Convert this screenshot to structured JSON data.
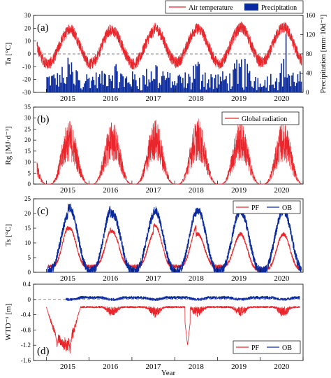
{
  "x_axis_label": "Year",
  "colors": {
    "red": "#e8262c",
    "blue": "#0b2a9e",
    "zero_line": "#555555"
  },
  "chart_data": [
    {
      "type": "line",
      "panel": "(a)",
      "ylabel": "Ta [°C]",
      "ylabel_right": "Precipitation [mm·10d⁻¹]",
      "ylim": [
        -30,
        30
      ],
      "yticks": [
        -30,
        -20,
        -10,
        0,
        10,
        20,
        30
      ],
      "ylim_right": [
        0,
        160
      ],
      "yticks_right": [
        0,
        40,
        80,
        120,
        160
      ],
      "xlim": [
        2014.7,
        2021.0
      ],
      "x_tick_labels": [
        "2015",
        "2016",
        "2017",
        "2018",
        "2019",
        "2020"
      ],
      "legend_position": "top-right",
      "reference_line": 0,
      "series": [
        {
          "name": "Air temperature",
          "type": "line",
          "color": "#e8262c",
          "amplitude": 14,
          "mean": 6,
          "peak_values": [
            20,
            22,
            20,
            22,
            22,
            23
          ],
          "trough_values": [
            -10,
            -10,
            -10,
            -9,
            -10,
            -9
          ]
        },
        {
          "name": "Precipitation",
          "type": "bar",
          "axis": "right",
          "color": "#0b2a9e",
          "interval_days": 10,
          "typical_max": 75,
          "extreme_event": {
            "x": 2020.6,
            "value": 122
          }
        }
      ]
    },
    {
      "type": "line",
      "panel": "(b)",
      "ylabel": "Rg [MJ·d⁻¹]",
      "ylim": [
        0,
        35
      ],
      "yticks": [
        0,
        5,
        10,
        15,
        20,
        25,
        30,
        35
      ],
      "xlim": [
        2014.7,
        2021.0
      ],
      "x_tick_labels": [
        "2015",
        "2016",
        "2017",
        "2018",
        "2019",
        "2020"
      ],
      "legend_position": "top-right",
      "series": [
        {
          "name": "Global radiation",
          "color": "#e8262c",
          "peak_values": [
            30,
            29,
            29,
            30,
            30,
            29
          ],
          "winter_min": 0
        }
      ]
    },
    {
      "type": "line",
      "panel": "(c)",
      "ylabel": "Ts [°C]",
      "ylim": [
        0,
        25
      ],
      "yticks": [
        0,
        5,
        10,
        15,
        20,
        25
      ],
      "xlim": [
        2014.7,
        2021.0
      ],
      "x_tick_labels": [
        "2015",
        "2016",
        "2017",
        "2018",
        "2019",
        "2020"
      ],
      "legend_position": "top-right",
      "series": [
        {
          "name": "PF",
          "color": "#e8262c",
          "peak_values": [
            16,
            15,
            14,
            16,
            13,
            13
          ],
          "winter_values": [
            2,
            2,
            2,
            2,
            2,
            1
          ]
        },
        {
          "name": "OB",
          "color": "#0b2a9e",
          "peak_values": [
            20,
            22,
            20,
            21,
            21,
            21
          ],
          "winter_values": [
            0.5,
            0.5,
            0.5,
            0.5,
            0.5,
            0.5
          ]
        }
      ]
    },
    {
      "type": "line",
      "panel": "(d)",
      "ylabel": "WTD⁻¹ [m]",
      "ylim": [
        -1.6,
        0.4
      ],
      "yticks": [
        -1.6,
        -1.2,
        -0.8,
        -0.4,
        0,
        0.4
      ],
      "xlim": [
        2014.7,
        2021.0
      ],
      "x_tick_labels": [
        "2015",
        "2016",
        "2017",
        "2018",
        "2019",
        "2020"
      ],
      "legend_position": "bottom-right",
      "reference_line": 0,
      "series": [
        {
          "name": "PF",
          "color": "#e8262c",
          "typical_value": -0.2,
          "minimum_events": [
            {
              "x": 2015.25,
              "value": -1.25
            },
            {
              "x": 2015.55,
              "value": -1.2
            },
            {
              "x": 2018.3,
              "value": -1.2
            }
          ]
        },
        {
          "name": "OB",
          "color": "#0b2a9e",
          "typical_value": 0.05,
          "range": [
            -0.1,
            0.15
          ]
        }
      ]
    }
  ]
}
